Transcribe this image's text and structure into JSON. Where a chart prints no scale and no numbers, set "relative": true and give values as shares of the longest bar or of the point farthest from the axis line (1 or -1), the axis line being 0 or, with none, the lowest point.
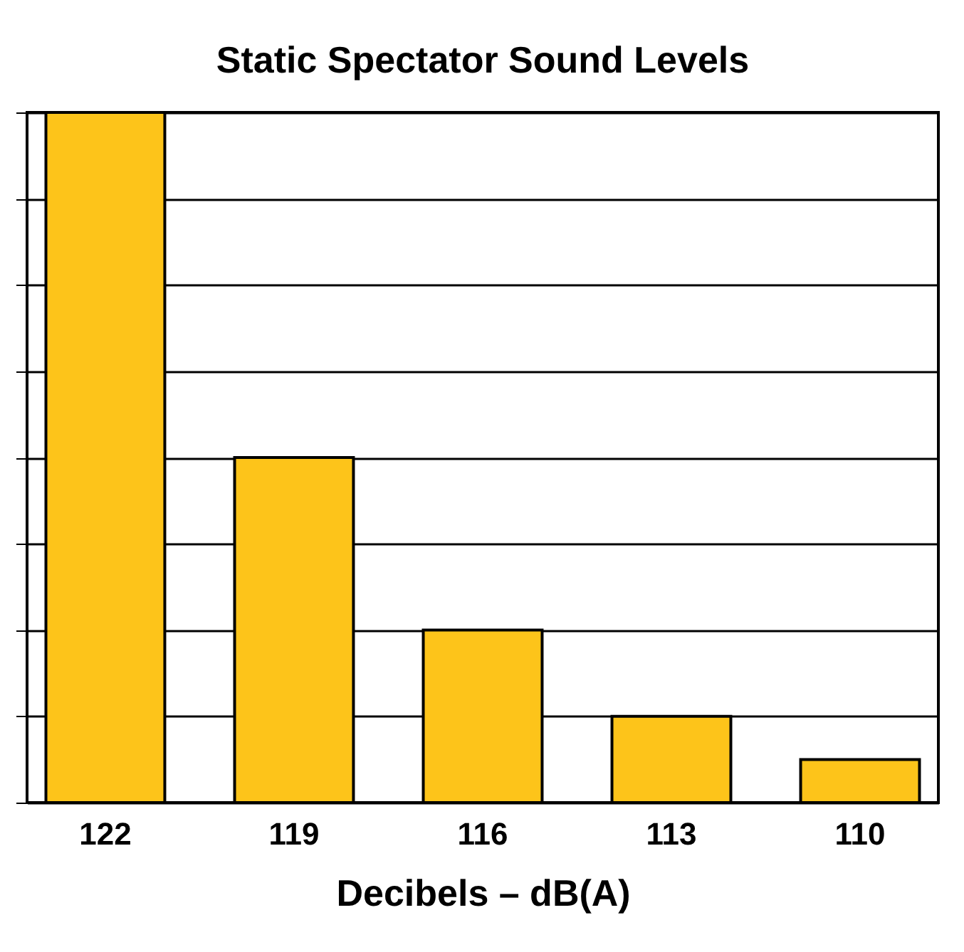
{
  "chart_data": {
    "type": "bar",
    "title": "Static Spectator Sound Levels",
    "xlabel": "Decibels – dB(A)",
    "categories": [
      "122",
      "119",
      "116",
      "113",
      "110"
    ],
    "values": [
      1,
      0.5,
      0.25,
      0.125,
      0.0625
    ],
    "color": "#fdc41a",
    "relative": true,
    "grid": "y"
  }
}
